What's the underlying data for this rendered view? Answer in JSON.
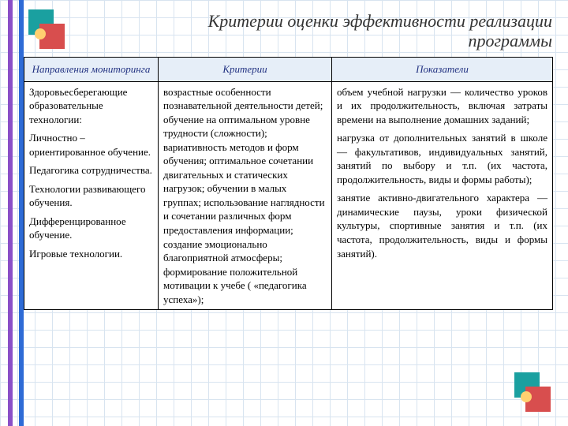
{
  "title_line1": "Критерии оценки эффективности реализации",
  "title_line2": "программы",
  "headers": {
    "col1": "Направления мониторинга",
    "col2": "Критерии",
    "col3": "Показатели"
  },
  "row": {
    "col1": {
      "p1": "Здоровьесберегающие образовательные технологии:",
      "p2": "Личностно – ориентированное обучение.",
      "p3": "Педагогика сотрудничества.",
      "p4": "Технологии развивающего обучения.",
      "p5": "Дифференцированное обучение.",
      "p6": "Игровые технологии."
    },
    "col2": "возрастные особенности познавательной деятельности детей; обучение на оптимальном уровне трудности (сложности); вариативность методов и форм обучения; оптимальное сочетании двигательных и статических нагрузок; обучении в малых группах; использование наглядности и сочетании различных форм предоставления информации; создание эмоционально благоприятной атмосферы; формирование положительной мотивации к учебе ( «педагогика успеха»);",
    "col3": {
      "p1": "объем учебной нагрузки — количество уроков и их продолжительность, включая затраты времени на выполнение домашних заданий;",
      "p2": "нагрузка от дополнительных занятий в школе — факультативов, индивидуальных занятий, занятий по выбору и т.п. (их частота, продолжительность, виды и формы работы);",
      "p3": "занятие активно-двигательного характера — динамические паузы, уроки физической культуры, спортивные занятия и т.п. (их частота, продолжительность, виды и формы занятий)."
    }
  },
  "colors": {
    "header_bg": "#e6eef8",
    "header_text": "#203080",
    "grid_light": "#d8e4f0",
    "grid_dark": "#b8cce4",
    "bar_purple": "#8a4fc7",
    "bar_blue": "#2e6bd6",
    "logo_teal": "#1aa0a0",
    "logo_red": "#d84e4e",
    "logo_dot": "#ffd070"
  }
}
